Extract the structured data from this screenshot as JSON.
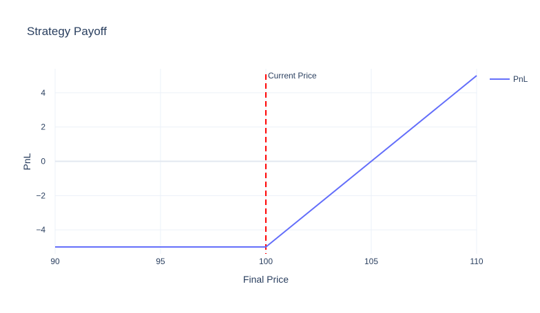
{
  "chart_data": {
    "type": "line",
    "title": "Strategy Payoff",
    "xlabel": "Final Price",
    "ylabel": "PnL",
    "xlim": [
      90,
      110
    ],
    "ylim": [
      -5.4,
      5.4
    ],
    "x_ticks": [
      90,
      95,
      100,
      105,
      110
    ],
    "y_ticks": [
      -4,
      -2,
      0,
      2,
      4
    ],
    "y_tick_labels": [
      "−4",
      "−2",
      "0",
      "2",
      "4"
    ],
    "grid": true,
    "legend_position": "top-right",
    "series": [
      {
        "name": "PnL",
        "color": "#636efa",
        "x": [
          90,
          100,
          110
        ],
        "y": [
          -5,
          -5,
          5
        ]
      }
    ],
    "annotations": [
      {
        "type": "vline",
        "x": 100,
        "label": "Current Price",
        "color": "#ff0000",
        "style": "dashed"
      }
    ]
  }
}
